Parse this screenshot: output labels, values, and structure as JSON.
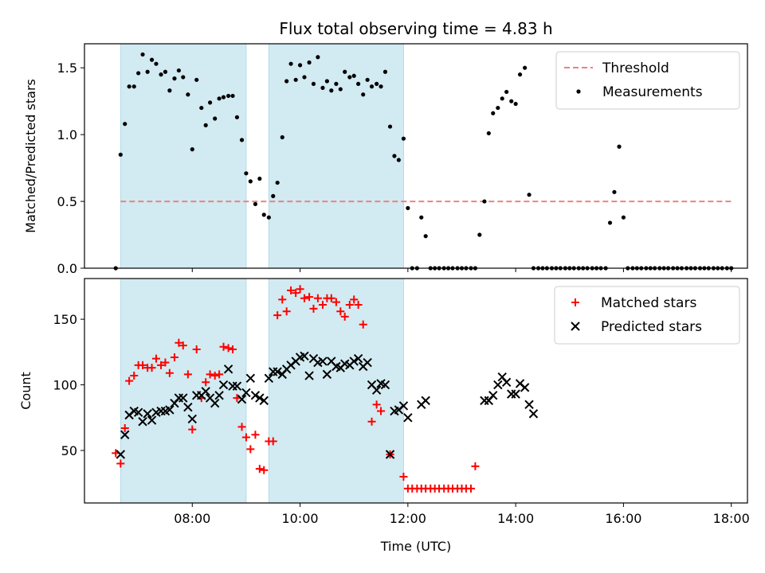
{
  "chart_data": [
    {
      "type": "scatter",
      "title": "Flux total observing time = 4.83 h",
      "ylabel": "Matched/Predicted stars",
      "ylim": [
        0,
        1.68
      ],
      "xlim": [
        6.0,
        18.3
      ],
      "yticks": [
        0.0,
        0.5,
        1.0,
        1.5
      ],
      "ytick_labels": [
        "0.0",
        "0.5",
        "1.0",
        "1.5"
      ],
      "legend_position": "top-right",
      "shaded_intervals": [
        [
          6.67,
          9.0
        ],
        [
          9.42,
          11.92
        ]
      ],
      "colors": {
        "threshold": "#f08080",
        "measurements": "#000000",
        "shade": "#add8e6"
      },
      "threshold": {
        "name": "Threshold",
        "value": 0.5,
        "x_range": [
          6.67,
          18.0
        ]
      },
      "series": [
        {
          "name": "Measurements",
          "x": [
            6.58,
            6.67,
            6.75,
            6.83,
            6.92,
            7.0,
            7.08,
            7.17,
            7.25,
            7.33,
            7.42,
            7.5,
            7.58,
            7.67,
            7.75,
            7.83,
            7.92,
            8.0,
            8.08,
            8.17,
            8.25,
            8.33,
            8.42,
            8.5,
            8.58,
            8.67,
            8.75,
            8.83,
            8.92,
            9.0,
            9.08,
            9.17,
            9.25,
            9.33,
            9.42,
            9.5,
            9.58,
            9.67,
            9.75,
            9.83,
            9.92,
            10.0,
            10.08,
            10.17,
            10.25,
            10.33,
            10.42,
            10.5,
            10.58,
            10.67,
            10.75,
            10.83,
            10.92,
            11.0,
            11.08,
            11.17,
            11.25,
            11.33,
            11.42,
            11.5,
            11.58,
            11.67,
            11.75,
            11.83,
            11.92,
            12.0,
            12.08,
            12.17,
            12.25,
            12.33,
            12.42,
            12.5,
            12.58,
            12.67,
            12.75,
            12.83,
            12.92,
            13.0,
            13.08,
            13.17,
            13.25,
            13.33,
            13.42,
            13.5,
            13.58,
            13.67,
            13.75,
            13.83,
            13.92,
            14.0,
            14.08,
            14.17,
            14.25,
            14.33,
            14.42,
            14.5,
            14.58,
            14.67,
            14.75,
            14.83,
            14.92,
            15.0,
            15.08,
            15.17,
            15.25,
            15.33,
            15.42,
            15.5,
            15.58,
            15.67,
            15.75,
            15.83,
            15.92,
            16.0,
            16.08,
            16.17,
            16.25,
            16.33,
            16.42,
            16.5,
            16.58,
            16.67,
            16.75,
            16.83,
            16.92,
            17.0,
            17.08,
            17.17,
            17.25,
            17.33,
            17.42,
            17.5,
            17.58,
            17.67,
            17.75,
            17.83,
            17.92,
            18.0
          ],
          "y": [
            0.0,
            0.85,
            1.08,
            1.36,
            1.36,
            1.46,
            1.6,
            1.47,
            1.56,
            1.53,
            1.45,
            1.47,
            1.33,
            1.42,
            1.48,
            1.43,
            1.3,
            0.89,
            1.41,
            1.2,
            1.07,
            1.24,
            1.12,
            1.27,
            1.28,
            1.29,
            1.29,
            1.13,
            0.96,
            0.71,
            0.65,
            0.48,
            0.67,
            0.4,
            0.38,
            0.54,
            0.64,
            0.98,
            1.4,
            1.53,
            1.41,
            1.52,
            1.43,
            1.54,
            1.38,
            1.58,
            1.35,
            1.4,
            1.33,
            1.38,
            1.34,
            1.47,
            1.43,
            1.44,
            1.38,
            1.3,
            1.41,
            1.36,
            1.38,
            1.36,
            1.47,
            1.06,
            0.84,
            0.81,
            0.97,
            0.45,
            0.0,
            0.0,
            0.38,
            0.24,
            0.0,
            0.0,
            0.0,
            0.0,
            0.0,
            0.0,
            0.0,
            0.0,
            0.0,
            0.0,
            0.0,
            0.25,
            0.5,
            1.01,
            1.16,
            1.2,
            1.27,
            1.32,
            1.25,
            1.23,
            1.45,
            1.5,
            0.55,
            0.0,
            0.0,
            0.0,
            0.0,
            0.0,
            0.0,
            0.0,
            0.0,
            0.0,
            0.0,
            0.0,
            0.0,
            0.0,
            0.0,
            0.0,
            0.0,
            0.0,
            0.34,
            0.57,
            0.91,
            0.38,
            0.0,
            0.0,
            0.0,
            0.0,
            0.0,
            0.0,
            0.0,
            0.0,
            0.0,
            0.0,
            0.0,
            0.0,
            0.0,
            0.0,
            0.0,
            0.0,
            0.0,
            0.0,
            0.0,
            0.0,
            0.0,
            0.0,
            0.0,
            0.0
          ]
        }
      ]
    },
    {
      "type": "scatter",
      "ylabel": "Count",
      "xlabel": "Time (UTC)",
      "ylim": [
        10,
        181
      ],
      "xlim": [
        6.0,
        18.3
      ],
      "yticks": [
        50,
        100,
        150
      ],
      "ytick_labels": [
        "50",
        "100",
        "150"
      ],
      "xticks": [
        8,
        10,
        12,
        14,
        16,
        18
      ],
      "xtick_labels": [
        "08:00",
        "10:00",
        "12:00",
        "14:00",
        "16:00",
        "18:00"
      ],
      "legend_position": "top-right",
      "shaded_intervals": [
        [
          6.67,
          9.0
        ],
        [
          9.42,
          11.92
        ]
      ],
      "colors": {
        "matched": "#ff0000",
        "predicted": "#000000",
        "shade": "#add8e6"
      },
      "series": [
        {
          "name": "Matched stars",
          "x": [
            6.58,
            6.67,
            6.75,
            6.83,
            6.92,
            7.0,
            7.08,
            7.17,
            7.25,
            7.33,
            7.42,
            7.5,
            7.58,
            7.67,
            7.75,
            7.83,
            7.92,
            8.0,
            8.08,
            8.17,
            8.25,
            8.33,
            8.42,
            8.5,
            8.58,
            8.67,
            8.75,
            8.83,
            8.92,
            9.0,
            9.08,
            9.17,
            9.25,
            9.33,
            9.42,
            9.5,
            9.58,
            9.67,
            9.75,
            9.83,
            9.92,
            10.0,
            10.08,
            10.17,
            10.25,
            10.33,
            10.42,
            10.5,
            10.58,
            10.67,
            10.75,
            10.83,
            10.92,
            11.0,
            11.08,
            11.17,
            11.25,
            11.33,
            11.42,
            11.5,
            11.58,
            11.67,
            11.75,
            11.83,
            11.92,
            12.0,
            12.08,
            12.17,
            12.25,
            12.33,
            12.42,
            12.5,
            12.58,
            12.67,
            12.75,
            12.83,
            12.92,
            13.0,
            13.08,
            13.17,
            13.25,
            13.33,
            13.42,
            13.5,
            13.58,
            13.67,
            13.75,
            13.83,
            13.92,
            14.0,
            14.08,
            14.17,
            14.25,
            14.33,
            14.42,
            14.5,
            14.58,
            14.67,
            14.75,
            14.83,
            14.92,
            15.0,
            15.08,
            15.17,
            15.25,
            15.33,
            15.42,
            15.5,
            15.58,
            15.67,
            15.75,
            15.83,
            15.92,
            16.0,
            16.08,
            16.17,
            16.25,
            16.33,
            16.42,
            16.5,
            16.58,
            16.67,
            16.75,
            16.83,
            16.92,
            17.0,
            17.08,
            17.17,
            17.25,
            17.33,
            17.42,
            17.5,
            17.58,
            17.67,
            17.75,
            17.83,
            17.92,
            18.0
          ],
          "y": [
            48,
            40,
            67,
            103,
            107,
            115,
            115,
            113,
            113,
            120,
            115,
            117,
            109,
            121,
            132,
            130,
            108,
            66,
            127,
            90,
            102,
            108,
            107,
            108,
            129,
            128,
            127,
            90,
            68,
            60,
            51,
            62,
            36,
            35,
            57,
            57,
            153,
            165,
            156,
            172,
            170,
            173,
            166,
            167,
            158,
            166,
            161,
            166,
            166,
            163,
            156,
            152,
            161,
            165,
            161,
            146,
            null,
            72,
            85,
            80,
            null,
            47,
            null,
            null,
            30,
            21,
            21,
            21,
            21,
            21,
            21,
            21,
            21,
            21,
            21,
            21,
            21,
            21,
            21,
            21,
            38,
            null,
            null,
            null,
            null,
            null,
            null,
            null,
            null,
            null,
            null,
            null,
            null,
            null,
            null,
            null,
            null,
            null,
            null,
            null,
            null,
            null,
            null,
            null,
            null,
            null,
            null,
            null,
            null,
            null,
            null,
            null,
            null,
            null,
            null,
            null,
            null,
            null,
            null,
            null,
            null,
            null,
            null,
            null,
            null,
            null,
            null,
            null,
            null,
            null,
            null,
            null,
            null,
            null,
            null,
            null,
            null,
            null
          ]
        },
        {
          "name": "Predicted stars",
          "x": [
            6.67,
            6.75,
            6.83,
            6.92,
            7.0,
            7.08,
            7.17,
            7.25,
            7.33,
            7.42,
            7.5,
            7.58,
            7.67,
            7.75,
            7.83,
            7.92,
            8.0,
            8.08,
            8.17,
            8.25,
            8.33,
            8.42,
            8.5,
            8.58,
            8.67,
            8.75,
            8.83,
            8.92,
            9.0,
            9.08,
            9.17,
            9.25,
            9.33,
            9.42,
            9.5,
            9.58,
            9.67,
            9.75,
            9.83,
            9.92,
            10.0,
            10.08,
            10.17,
            10.25,
            10.33,
            10.42,
            10.5,
            10.58,
            10.67,
            10.75,
            10.83,
            10.92,
            11.0,
            11.08,
            11.17,
            11.25,
            11.33,
            11.42,
            11.5,
            11.58,
            11.67,
            11.75,
            11.83,
            11.92,
            12.0,
            12.25,
            12.33,
            13.42,
            13.5,
            13.58,
            13.67,
            13.75,
            13.83,
            13.92,
            14.0,
            14.08,
            14.17,
            14.25,
            14.33,
            15.92,
            16.0,
            16.08,
            16.17
          ],
          "y": [
            47,
            62,
            77,
            80,
            79,
            72,
            78,
            73,
            79,
            80,
            80,
            81,
            86,
            90,
            90,
            83,
            74,
            92,
            92,
            95,
            90,
            86,
            92,
            100,
            112,
            99,
            99,
            89,
            94,
            105,
            92,
            90,
            88,
            105,
            110,
            110,
            108,
            112,
            115,
            118,
            121,
            122,
            107,
            120,
            117,
            118,
            108,
            118,
            114,
            113,
            116,
            115,
            118,
            120,
            114,
            117,
            100,
            96,
            101,
            100,
            47,
            80,
            81,
            84,
            75,
            85,
            88,
            88,
            88,
            92,
            100,
            106,
            102,
            93,
            93,
            101,
            98,
            85,
            78,
            null,
            null,
            null,
            null
          ],
          "note": ""
        }
      ]
    }
  ]
}
